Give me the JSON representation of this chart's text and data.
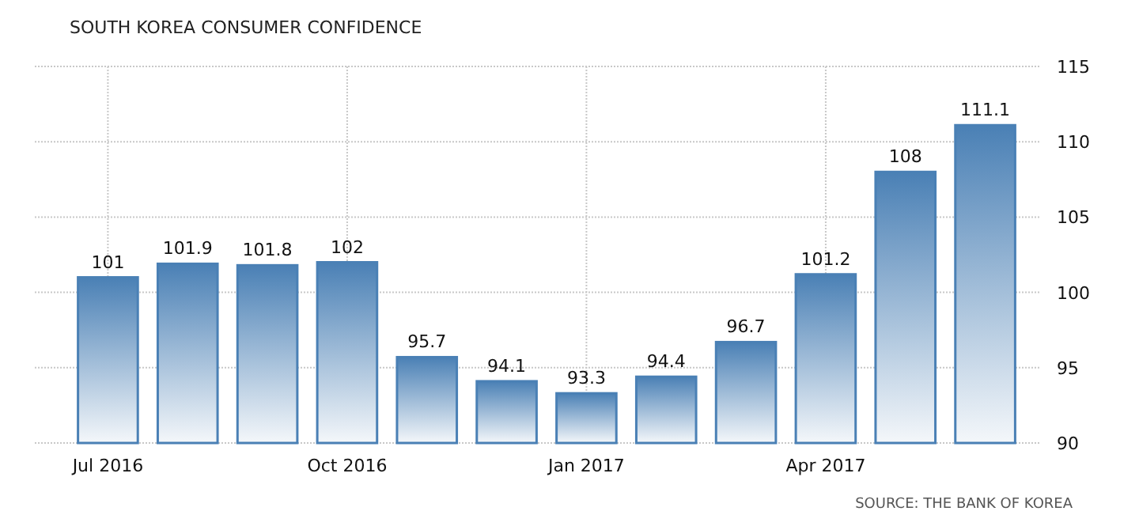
{
  "chart_data": {
    "type": "bar",
    "title": "SOUTH KOREA CONSUMER CONFIDENCE",
    "categories": [
      "Jul 2016",
      null,
      null,
      "Oct 2016",
      null,
      null,
      "Jan 2017",
      null,
      null,
      "Apr 2017",
      null,
      null
    ],
    "values": [
      101,
      101.9,
      101.8,
      102,
      95.7,
      94.1,
      93.3,
      94.4,
      96.7,
      101.2,
      108,
      111.1
    ],
    "color": "#4a80b5",
    "ylim": [
      90,
      115
    ],
    "yticks": [
      90,
      95,
      100,
      105,
      110,
      115
    ],
    "grid": true,
    "data_labels": true,
    "annotations": [
      "SOURCE: THE BANK OF KOREA"
    ]
  }
}
